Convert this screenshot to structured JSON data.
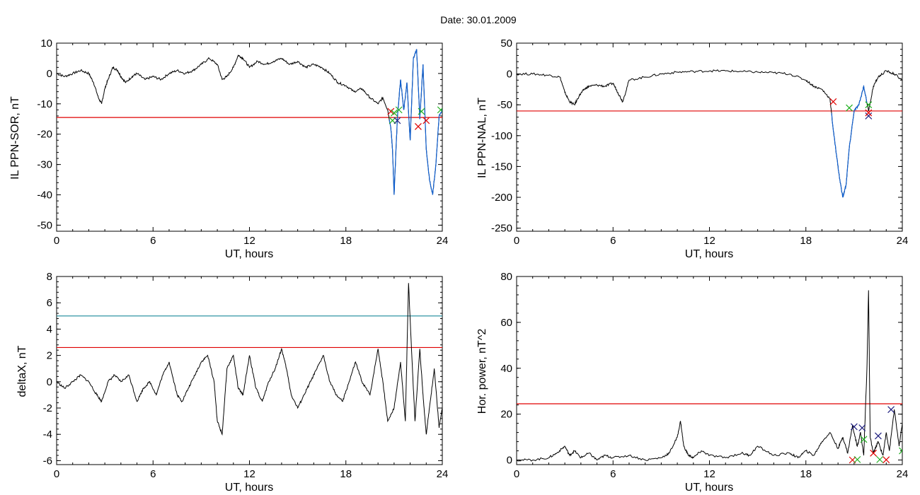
{
  "title": "Date:  30.01.2009",
  "colors": {
    "trace": "#000000",
    "threshold_red": "#e00000",
    "threshold_cyan": "#1a8a9a",
    "segment_blue": "#1060d0",
    "mark_green": "#20b020",
    "mark_red": "#e00000",
    "mark_navy": "#202080"
  },
  "chart_data": [
    {
      "type": "line",
      "ylabel": "IL PPN-SOR, nT",
      "xlabel": "UT, hours",
      "xlim": [
        0,
        24
      ],
      "ylim": [
        -52,
        10
      ],
      "xticks": [
        "0",
        "6",
        "12",
        "18",
        "24"
      ],
      "yticks": [
        "10",
        "0",
        "-10",
        "-20",
        "-30",
        "-40",
        "-50"
      ],
      "thresholds": [
        {
          "y": -14.5,
          "color": "red"
        }
      ],
      "series": [
        {
          "x": [
            0,
            0.5,
            1,
            1.5,
            2,
            2.3,
            2.6,
            2.8,
            3.0,
            3.2,
            3.5,
            3.8,
            4.0,
            4.3,
            4.7,
            5.0,
            5.5,
            6.0,
            6.5,
            7.0,
            7.5,
            8.0,
            8.5,
            9.0,
            9.5,
            10.0,
            10.3,
            10.6,
            11.0,
            11.3,
            11.6,
            12.0,
            12.5,
            13.0,
            13.5,
            14.0,
            14.5,
            15.0,
            15.5,
            16.0,
            16.5,
            17.0,
            17.5,
            18.0,
            18.5,
            19.0,
            19.5,
            20.0,
            20.3,
            20.6,
            20.8,
            20.9,
            21.0,
            21.2,
            21.4,
            21.6,
            21.8,
            22.0,
            22.2,
            22.4,
            22.6,
            22.8,
            23.0,
            23.2,
            23.4,
            23.6,
            23.8,
            24.0
          ],
          "y": [
            0,
            -1,
            0,
            1,
            0,
            -3,
            -8,
            -10,
            -5,
            -2,
            2,
            1,
            -1,
            -3,
            -1,
            0,
            -2,
            -1,
            -2,
            0,
            1,
            0,
            1,
            3,
            5,
            3,
            -2,
            -1,
            2,
            6,
            5,
            2,
            4,
            3,
            4,
            5,
            3,
            4,
            2,
            3,
            2,
            0,
            -3,
            -4,
            -6,
            -5,
            -8,
            -10,
            -8,
            -12,
            -18,
            -25,
            -40,
            -15,
            -2,
            -12,
            -3,
            -22,
            5,
            8,
            -15,
            3,
            -25,
            -35,
            -40,
            -30,
            -14,
            -12
          ],
          "segment_color": "blue",
          "segment_xrange": [
            20.7,
            24
          ]
        }
      ],
      "markers": [
        {
          "x": 20.8,
          "y": -12.5,
          "c": "red"
        },
        {
          "x": 20.9,
          "y": -15.5,
          "c": "green"
        },
        {
          "x": 21.0,
          "y": -13,
          "c": "green"
        },
        {
          "x": 21.2,
          "y": -15.5,
          "c": "navy"
        },
        {
          "x": 21.3,
          "y": -12,
          "c": "green"
        },
        {
          "x": 22.5,
          "y": -17.5,
          "c": "red"
        },
        {
          "x": 22.7,
          "y": -12.5,
          "c": "green"
        },
        {
          "x": 23.0,
          "y": -15.5,
          "c": "red"
        },
        {
          "x": 23.9,
          "y": -12,
          "c": "green"
        }
      ]
    },
    {
      "type": "line",
      "ylabel": "IL PPN-NAL, nT",
      "xlabel": "UT, hours",
      "xlim": [
        0,
        24
      ],
      "ylim": [
        -255,
        50
      ],
      "xticks": [
        "0",
        "6",
        "12",
        "18",
        "24"
      ],
      "yticks": [
        "50",
        "0",
        "-50",
        "-100",
        "-150",
        "-200",
        "-250"
      ],
      "thresholds": [
        {
          "y": -60,
          "color": "red"
        }
      ],
      "series": [
        {
          "x": [
            0,
            1,
            2,
            2.7,
            3.0,
            3.3,
            3.6,
            3.9,
            4.2,
            4.5,
            5.0,
            5.5,
            6.0,
            6.3,
            6.6,
            7.0,
            8.0,
            9.0,
            10.0,
            11.0,
            12.0,
            13.0,
            14.0,
            15.0,
            16.0,
            17.0,
            18.0,
            18.5,
            19.0,
            19.5,
            19.7,
            19.9,
            20.1,
            20.3,
            20.5,
            20.7,
            21.0,
            21.3,
            21.6,
            21.9,
            22.2,
            22.5,
            23.0,
            23.5,
            24.0
          ],
          "y": [
            0,
            0,
            -2,
            -5,
            -30,
            -45,
            -50,
            -35,
            -25,
            -20,
            -18,
            -20,
            -15,
            -30,
            -45,
            -10,
            -5,
            0,
            3,
            4,
            5,
            5,
            4,
            3,
            2,
            0,
            -10,
            -20,
            -25,
            -40,
            -90,
            -130,
            -170,
            -200,
            -180,
            -120,
            -60,
            -50,
            -20,
            -60,
            -20,
            -5,
            5,
            0,
            -10
          ],
          "segment_color": "blue",
          "segment_xrange": [
            19.6,
            21.8
          ]
        }
      ],
      "markers": [
        {
          "x": 19.7,
          "y": -45,
          "c": "red"
        },
        {
          "x": 20.7,
          "y": -55,
          "c": "green"
        },
        {
          "x": 21.9,
          "y": -50,
          "c": "green"
        },
        {
          "x": 21.9,
          "y": -68,
          "c": "navy"
        },
        {
          "x": 21.9,
          "y": -63,
          "c": "red"
        }
      ]
    },
    {
      "type": "line",
      "ylabel": "deltaX, nT",
      "xlabel": "UT, hours",
      "xlim": [
        0,
        24
      ],
      "ylim": [
        -6.3,
        8
      ],
      "xticks": [
        "0",
        "6",
        "12",
        "18",
        "24"
      ],
      "yticks": [
        "8",
        "6",
        "4",
        "2",
        "0",
        "-2",
        "-4",
        "-6"
      ],
      "thresholds": [
        {
          "y": 5.0,
          "color": "cyan"
        },
        {
          "y": 2.6,
          "color": "red"
        }
      ],
      "series": [
        {
          "x": [
            0,
            0.5,
            1,
            1.5,
            2,
            2.5,
            2.8,
            3.2,
            3.6,
            4.0,
            4.5,
            5.0,
            5.4,
            5.8,
            6.2,
            6.6,
            7.0,
            7.5,
            7.8,
            8.2,
            8.6,
            9.0,
            9.4,
            9.8,
            10.0,
            10.3,
            10.6,
            11.0,
            11.3,
            11.6,
            12.0,
            12.4,
            12.8,
            13.2,
            13.6,
            14.0,
            14.3,
            14.6,
            15.0,
            15.4,
            15.8,
            16.2,
            16.6,
            17.0,
            17.4,
            17.8,
            18.2,
            18.6,
            19.0,
            19.5,
            20.0,
            20.3,
            20.6,
            21.0,
            21.4,
            21.7,
            21.9,
            22.1,
            22.3,
            22.6,
            22.8,
            23.0,
            23.2,
            23.5,
            23.8,
            24.0
          ],
          "y": [
            0,
            -0.5,
            0,
            0.5,
            0,
            -1,
            -1.5,
            0,
            0.5,
            0,
            0.5,
            -1.5,
            -0.5,
            0,
            -1,
            0.5,
            1.5,
            -1,
            -1.5,
            -0.5,
            0.5,
            1.5,
            2,
            0,
            -3,
            -4,
            1,
            2,
            -0.5,
            -1,
            2,
            -0.5,
            -1.5,
            0,
            1,
            2.5,
            1,
            -1,
            -2,
            -1,
            0,
            1,
            2,
            0,
            -1,
            -1.5,
            0,
            1.5,
            0,
            -1,
            2.5,
            0,
            -3,
            -2,
            1.5,
            -3,
            7.5,
            2,
            -3,
            2.5,
            -1,
            -4,
            -2,
            1,
            -3.5,
            -2
          ],
          "segment_color": "black"
        }
      ],
      "markers": []
    },
    {
      "type": "line",
      "ylabel": "Hor. power, nT^2",
      "xlabel": "UT, hours",
      "xlim": [
        0,
        24
      ],
      "ylim": [
        -2,
        80
      ],
      "xticks": [
        "0",
        "6",
        "12",
        "18",
        "24"
      ],
      "yticks": [
        "80",
        "60",
        "40",
        "20",
        "0"
      ],
      "thresholds": [
        {
          "y": 24.5,
          "color": "red"
        }
      ],
      "series": [
        {
          "x": [
            0,
            1,
            2,
            2.5,
            3.0,
            3.3,
            3.6,
            4.0,
            4.5,
            5.0,
            5.5,
            6.0,
            7.0,
            8.0,
            9.0,
            9.5,
            10.0,
            10.2,
            10.4,
            10.7,
            11.0,
            11.5,
            12.0,
            13.0,
            14.0,
            14.5,
            15.0,
            16.0,
            17.0,
            17.5,
            18.0,
            18.5,
            19.0,
            19.5,
            20.0,
            20.3,
            20.6,
            20.9,
            21.2,
            21.4,
            21.6,
            21.8,
            21.9,
            22.0,
            22.2,
            22.5,
            22.8,
            23.0,
            23.2,
            23.5,
            23.8,
            24.0
          ],
          "y": [
            0,
            0,
            1,
            3,
            6,
            2,
            4,
            1,
            3,
            0,
            2,
            1,
            2,
            0,
            1,
            3,
            10,
            17,
            6,
            2,
            1,
            4,
            2,
            1,
            3,
            2,
            6,
            2,
            3,
            1,
            4,
            2,
            8,
            12,
            5,
            10,
            3,
            15,
            6,
            12,
            2,
            40,
            74,
            10,
            3,
            8,
            2,
            12,
            4,
            22,
            6,
            16
          ],
          "segment_color": "black"
        }
      ],
      "markers": [
        {
          "x": 21.0,
          "y": 14.5,
          "c": "navy"
        },
        {
          "x": 21.5,
          "y": 14,
          "c": "navy"
        },
        {
          "x": 22.5,
          "y": 10.5,
          "c": "navy"
        },
        {
          "x": 23.3,
          "y": 22,
          "c": "navy"
        },
        {
          "x": 21.6,
          "y": 9,
          "c": "green"
        },
        {
          "x": 20.9,
          "y": 0,
          "c": "red"
        },
        {
          "x": 21.2,
          "y": 0.2,
          "c": "green"
        },
        {
          "x": 22.2,
          "y": 3,
          "c": "red"
        },
        {
          "x": 22.6,
          "y": 0.2,
          "c": "green"
        },
        {
          "x": 23.0,
          "y": 0.1,
          "c": "red"
        },
        {
          "x": 24.0,
          "y": 4,
          "c": "green"
        }
      ]
    }
  ]
}
